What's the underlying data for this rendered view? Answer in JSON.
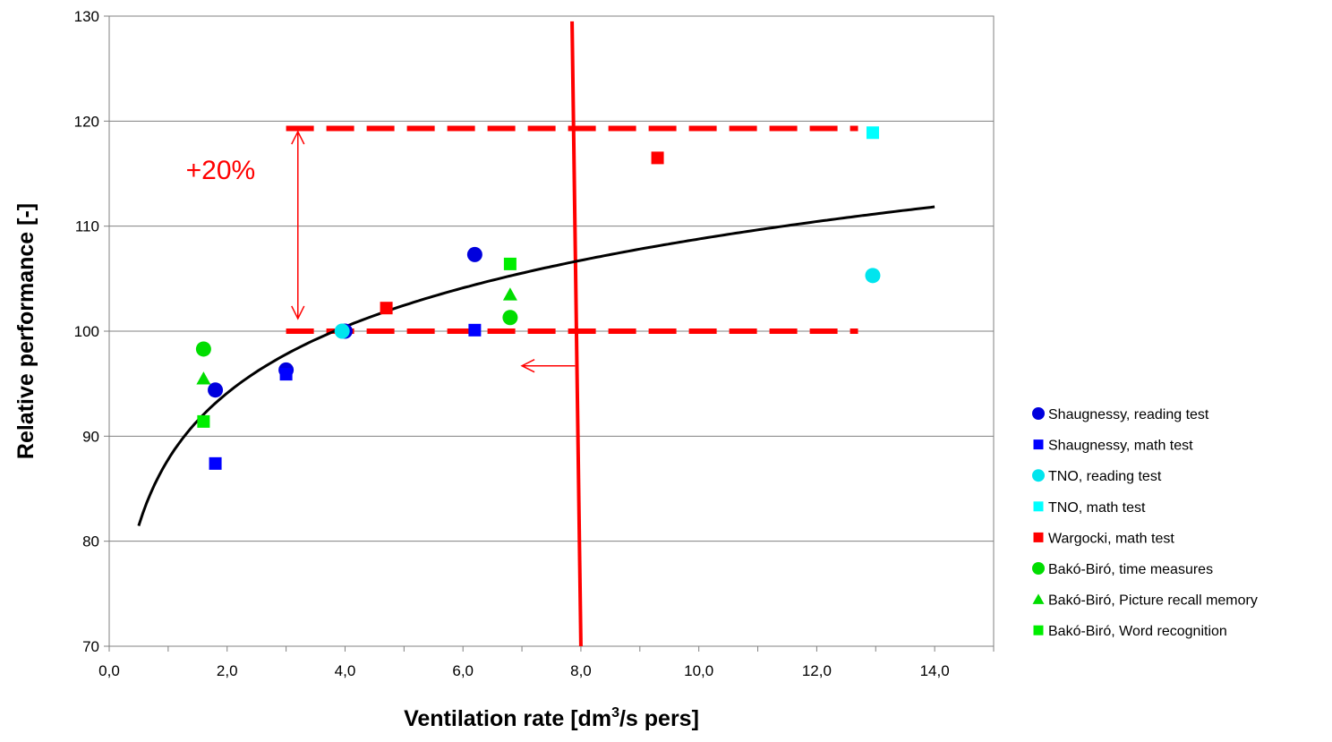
{
  "chart_data": {
    "type": "scatter",
    "xlabel_main": "Ventilation rate [dm",
    "xlabel_sup": "3",
    "xlabel_tail": "/s pers]",
    "ylabel": "Relative performance [-]",
    "xlim": [
      0,
      15
    ],
    "ylim": [
      70,
      130
    ],
    "x_ticks": [
      "0,0",
      "2,0",
      "4,0",
      "6,0",
      "8,0",
      "10,0",
      "12,0",
      "14,0"
    ],
    "y_ticks": [
      "70",
      "80",
      "90",
      "100",
      "110",
      "120",
      "130"
    ],
    "y_grid": true,
    "legend_position": "right",
    "series": [
      {
        "name": "Shaugnessy, reading test",
        "marker": "circle",
        "color": "#0000dd",
        "points": [
          [
            1.8,
            94.4
          ],
          [
            3.0,
            96.3
          ],
          [
            4.0,
            100.0
          ],
          [
            6.2,
            107.3
          ]
        ]
      },
      {
        "name": "Shaugnessy, math test",
        "marker": "square",
        "color": "#0000ff",
        "points": [
          [
            1.8,
            87.4
          ],
          [
            3.0,
            95.9
          ],
          [
            6.2,
            100.1
          ]
        ]
      },
      {
        "name": "TNO, reading test",
        "marker": "circle",
        "color": "#00e5ee",
        "points": [
          [
            3.95,
            100.0
          ],
          [
            12.95,
            105.3
          ]
        ]
      },
      {
        "name": "TNO, math test",
        "marker": "square",
        "color": "#00ffff",
        "points": [
          [
            12.95,
            118.9
          ]
        ]
      },
      {
        "name": "Wargocki, math test",
        "marker": "square",
        "color": "#ff0000",
        "points": [
          [
            4.7,
            102.2
          ],
          [
            9.3,
            116.5
          ]
        ]
      },
      {
        "name": "Bakó-Biró, time measures",
        "marker": "circle",
        "color": "#00dd00",
        "points": [
          [
            1.6,
            98.3
          ],
          [
            6.8,
            101.3
          ]
        ]
      },
      {
        "name": "Bakó-Biró, Picture recall memory",
        "marker": "triangle",
        "color": "#00dd00",
        "points": [
          [
            1.6,
            95.5
          ],
          [
            6.8,
            103.5
          ]
        ]
      },
      {
        "name": "Bakó-Biró, Word recognition",
        "marker": "square",
        "color": "#00ee00",
        "points": [
          [
            1.6,
            91.4
          ],
          [
            6.8,
            106.4
          ]
        ]
      }
    ],
    "trend": {
      "color": "#000000",
      "x_range": [
        0.5,
        14.0
      ],
      "points": [
        [
          0.5,
          83.0
        ],
        [
          1.0,
          87.5
        ],
        [
          2.0,
          93.0
        ],
        [
          4.0,
          98.5
        ],
        [
          6.0,
          104.0
        ],
        [
          8.0,
          107.0
        ],
        [
          10.0,
          109.0
        ],
        [
          12.0,
          111.0
        ],
        [
          14.0,
          112.7
        ]
      ]
    },
    "reference_lines": [
      {
        "kind": "dashed-horizontal",
        "y": 119.3,
        "x_from": 3.0,
        "x_to": 12.7,
        "color": "#ff0000"
      },
      {
        "kind": "dashed-horizontal",
        "y": 100.0,
        "x_from": 3.0,
        "x_to": 12.7,
        "color": "#ff0000"
      },
      {
        "kind": "solid-near-vertical",
        "from": [
          7.85,
          129.5
        ],
        "to": [
          8.0,
          70.0
        ],
        "color": "#ff0000"
      }
    ],
    "annotations": [
      {
        "text": "+20%",
        "x": 1.3,
        "y": 114.5,
        "color": "#ff0000"
      }
    ],
    "arrows": [
      {
        "kind": "double",
        "x": 3.2,
        "y_from": 101.2,
        "y_to": 119.0,
        "color": "#ff0000"
      },
      {
        "kind": "left",
        "x_from": 7.9,
        "x_to": 7.0,
        "y": 96.7,
        "color": "#ff0000"
      }
    ]
  }
}
